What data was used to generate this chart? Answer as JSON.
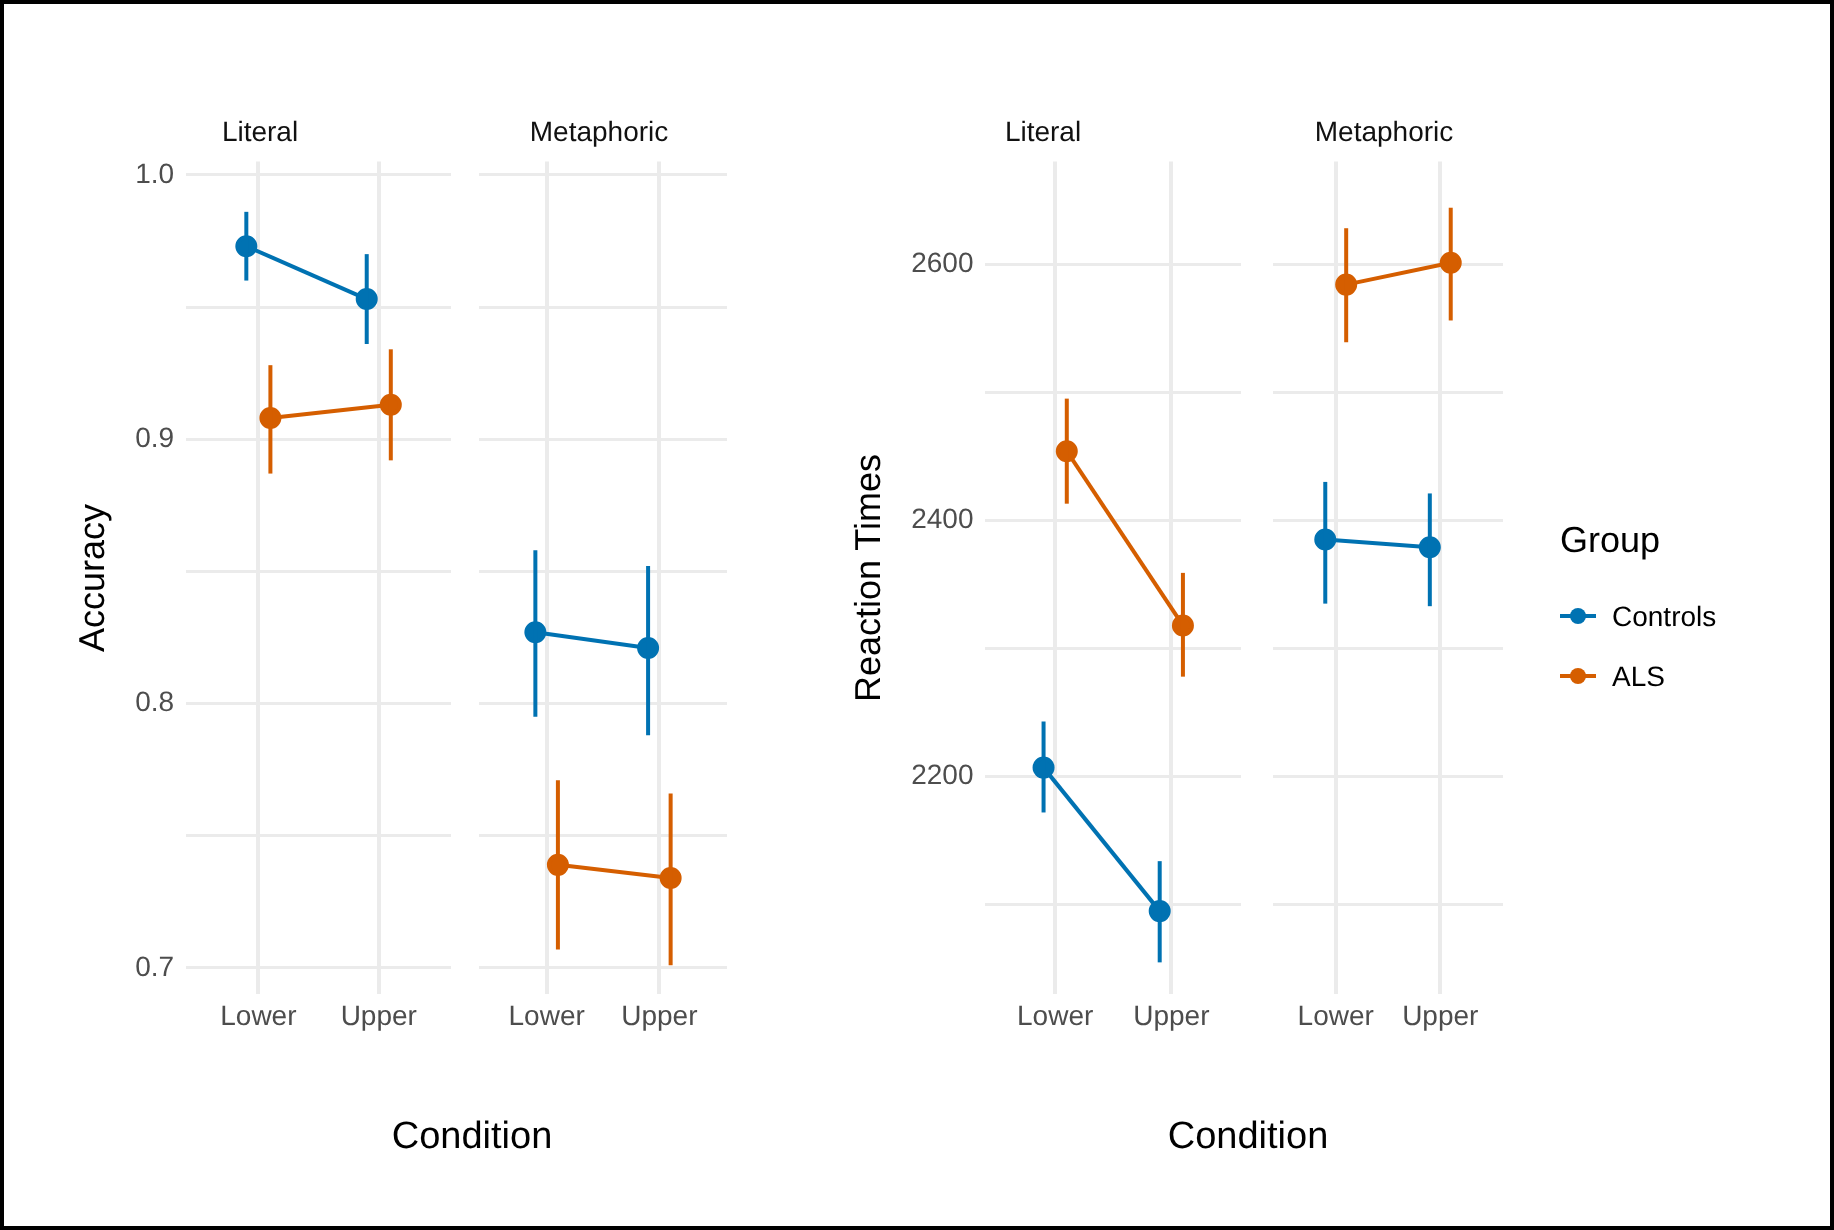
{
  "chart_data": [
    {
      "type": "line",
      "title": "Literal",
      "xlabel": "Condition",
      "ylabel": "Accuracy",
      "categories": [
        "Lower",
        "Upper"
      ],
      "ylim": [
        0.69,
        1.005
      ],
      "yticks": [
        {
          "value": 0.7,
          "label": "0.7"
        },
        {
          "value": 0.75,
          "label": null
        },
        {
          "value": 0.8,
          "label": "0.8"
        },
        {
          "value": 0.85,
          "label": null
        },
        {
          "value": 0.9,
          "label": "0.9"
        },
        {
          "value": 0.95,
          "label": null
        },
        {
          "value": 1.0,
          "label": "1.0"
        }
      ],
      "grid": true,
      "marker": "circle",
      "series": [
        {
          "color": "#0072b2",
          "values": [
            0.973,
            0.953
          ],
          "errors": [
            [
              0.96,
              0.986
            ],
            [
              0.936,
              0.97
            ]
          ]
        },
        {
          "color": "#d55e00",
          "values": [
            0.908,
            0.913
          ],
          "errors": [
            [
              0.887,
              0.928
            ],
            [
              0.892,
              0.934
            ]
          ]
        }
      ]
    },
    {
      "type": "line",
      "title": "Metaphoric",
      "categories": [
        "Lower",
        "Upper"
      ],
      "ylim": [
        0.69,
        1.005
      ],
      "yticks": [
        {
          "value": 0.7,
          "label": null
        },
        {
          "value": 0.75,
          "label": null
        },
        {
          "value": 0.8,
          "label": null
        },
        {
          "value": 0.85,
          "label": null
        },
        {
          "value": 0.9,
          "label": null
        },
        {
          "value": 0.95,
          "label": null
        },
        {
          "value": 1.0,
          "label": null
        }
      ],
      "tick_labels": "x",
      "grid": true,
      "marker": "circle",
      "series": [
        {
          "color": "#0072b2",
          "values": [
            0.827,
            0.821
          ],
          "errors": [
            [
              0.795,
              0.858
            ],
            [
              0.788,
              0.852
            ]
          ]
        },
        {
          "color": "#d55e00",
          "values": [
            0.739,
            0.734
          ],
          "errors": [
            [
              0.707,
              0.771
            ],
            [
              0.701,
              0.766
            ]
          ]
        }
      ]
    },
    {
      "type": "line",
      "title": "Literal",
      "xlabel": "Condition",
      "ylabel": "Reaction Times",
      "categories": [
        "Lower",
        "Upper"
      ],
      "ylim": [
        2030,
        2680
      ],
      "yticks": [
        {
          "value": 2100,
          "label": null
        },
        {
          "value": 2200,
          "label": "2200"
        },
        {
          "value": 2300,
          "label": null
        },
        {
          "value": 2400,
          "label": "2400"
        },
        {
          "value": 2500,
          "label": null
        },
        {
          "value": 2600,
          "label": "2600"
        }
      ],
      "grid": true,
      "marker": "circle",
      "series": [
        {
          "color": "#0072b2",
          "values": [
            2207,
            2095
          ],
          "errors": [
            [
              2172,
              2243
            ],
            [
              2055,
              2134
            ]
          ]
        },
        {
          "color": "#d55e00",
          "values": [
            2454,
            2318
          ],
          "errors": [
            [
              2413,
              2495
            ],
            [
              2278,
              2359
            ]
          ]
        }
      ]
    },
    {
      "type": "line",
      "title": "Metaphoric",
      "categories": [
        "Lower",
        "Upper"
      ],
      "ylim": [
        2030,
        2680
      ],
      "yticks": [
        {
          "value": 2100,
          "label": null
        },
        {
          "value": 2200,
          "label": null
        },
        {
          "value": 2300,
          "label": null
        },
        {
          "value": 2400,
          "label": null
        },
        {
          "value": 2500,
          "label": null
        },
        {
          "value": 2600,
          "label": null
        }
      ],
      "tick_labels": "x",
      "grid": true,
      "marker": "circle",
      "legend": "right",
      "legend_title": "Group",
      "series": [
        {
          "name": "Controls",
          "color": "#0072b2",
          "values": [
            2385,
            2379
          ],
          "errors": [
            [
              2335,
              2430
            ],
            [
              2333,
              2421
            ]
          ]
        },
        {
          "name": "ALS",
          "color": "#d55e00",
          "values": [
            2584,
            2601
          ],
          "errors": [
            [
              2539,
              2628
            ],
            [
              2556,
              2644
            ]
          ]
        }
      ]
    }
  ]
}
